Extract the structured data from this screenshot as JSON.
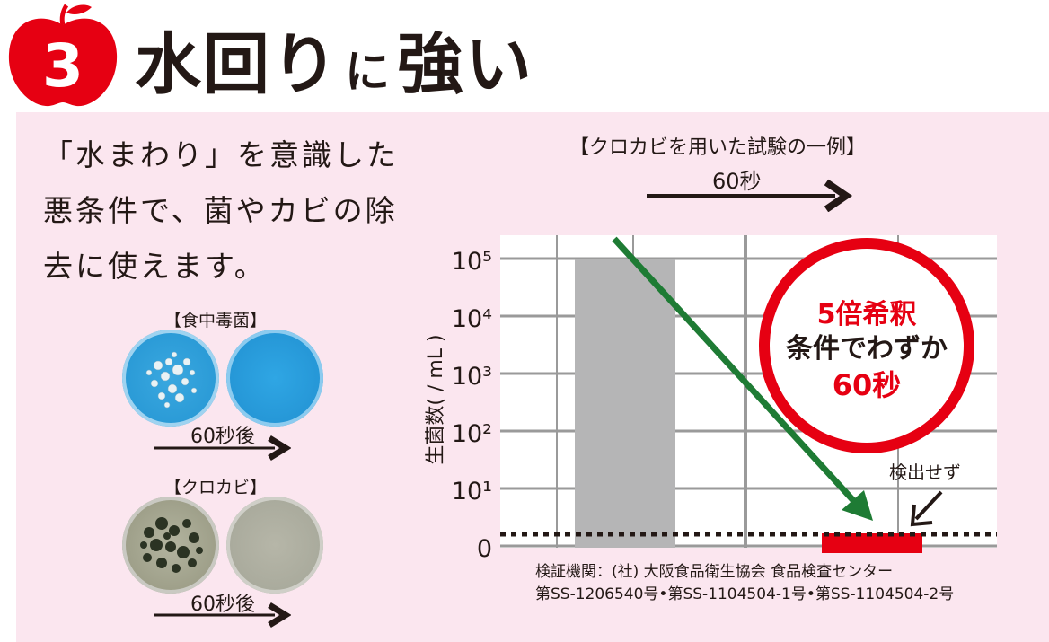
{
  "header": {
    "number": "3",
    "title_part1": "水回り",
    "title_part2": "に",
    "title_part3": "強い",
    "accent_color": "#e60012"
  },
  "intro": {
    "lines": [
      "「水まわり」を意識した",
      "悪条件で、菌やカビの除",
      "去に使えます。"
    ]
  },
  "dishes": {
    "bacteria_title": "【食中毒菌】",
    "bacteria_label": "60秒後",
    "mold_title": "【クロカビ】",
    "mold_label": "60秒後"
  },
  "chart": {
    "title": "【クロカビを用いた試験の一例】",
    "time_label": "60秒",
    "ylabel": "生菌数( / mL )",
    "callout_line1": "5倍希釈",
    "callout_line2": "条件でわずか",
    "callout_line3": "60秒",
    "annotation": "検出せず",
    "source_line1": "検証機関：(社) 大阪食品衛生協会  食品検査センター",
    "source_line2": "第SS-1206540号•第SS-1104504-1号•第SS-1104504-2号"
  },
  "chart_data": {
    "type": "bar",
    "categories": [
      "",
      ""
    ],
    "y_scale": "log",
    "ytick_labels": [
      "0",
      "10¹",
      "10²",
      "10³",
      "10⁴",
      "10⁵"
    ],
    "ylim": [
      0,
      100000
    ],
    "values": [
      100000,
      0
    ],
    "bar_colors": [
      "#b5b5b6",
      "#e60012"
    ],
    "grid": true
  }
}
